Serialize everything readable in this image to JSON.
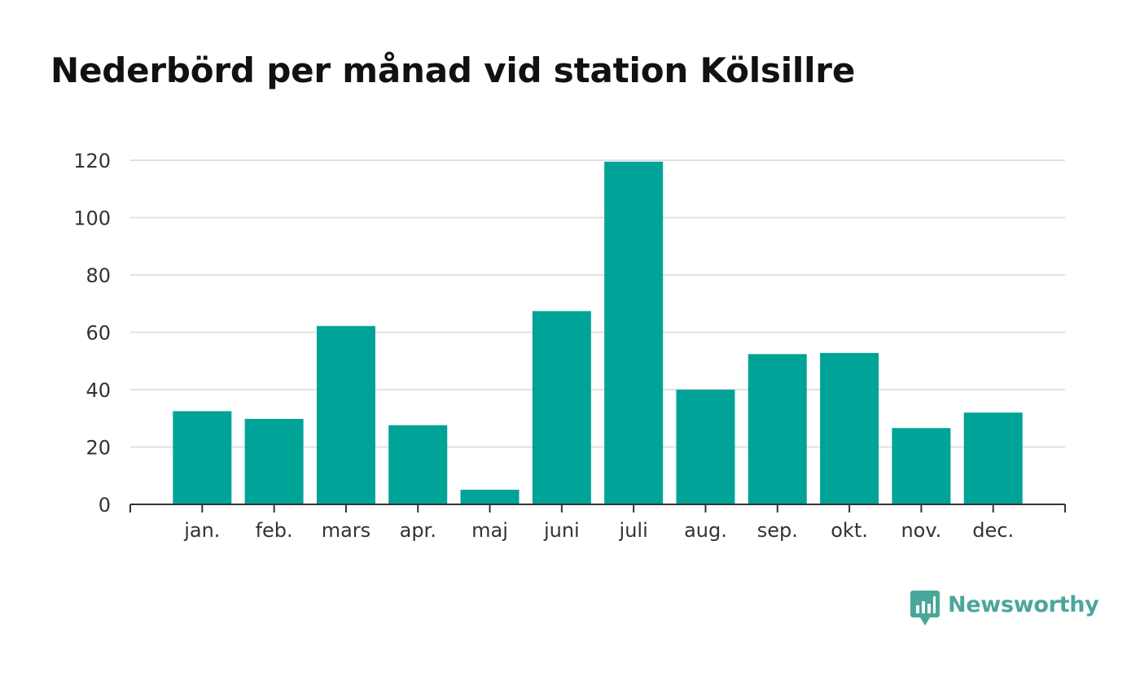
{
  "chart_data": {
    "type": "bar",
    "title": "Nederbörd per månad vid station Kölsillre",
    "categories": [
      "jan.",
      "feb.",
      "mars",
      "apr.",
      "maj",
      "juni",
      "juli",
      "aug.",
      "sep.",
      "okt.",
      "nov.",
      "dec."
    ],
    "values": [
      32.5,
      29.8,
      62.2,
      27.6,
      5.1,
      67.4,
      119.5,
      40.0,
      52.4,
      52.8,
      26.6,
      32.0
    ],
    "xlabel": "",
    "ylabel": "",
    "ylim": [
      0,
      120
    ],
    "yticks": [
      "0",
      "20",
      "40",
      "60",
      "80",
      "100",
      "120"
    ],
    "grid": true,
    "legend": "none"
  },
  "colors": {
    "bar": "#00a398",
    "grid": "#e1e1e1",
    "axis": "#333333",
    "brand": "#4ba69a"
  },
  "branding": {
    "name": "Newsworthy",
    "icon": "newsworthy-logo-icon"
  }
}
